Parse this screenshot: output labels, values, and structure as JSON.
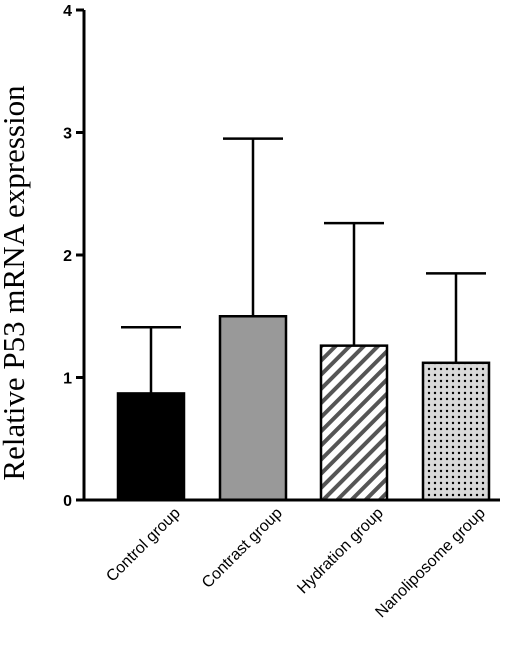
{
  "chart_data": {
    "type": "bar",
    "title": "",
    "xlabel": "",
    "ylabel": "Relative P53 mRNA expression",
    "ylim": [
      0,
      4
    ],
    "yticks": [
      0,
      1,
      2,
      3,
      4
    ],
    "categories": [
      "Control group",
      "Contrast group",
      "Hydration group",
      "Nanoliposome group"
    ],
    "values": [
      0.87,
      1.5,
      1.26,
      1.12
    ],
    "error_upper": [
      1.41,
      2.95,
      2.26,
      1.85
    ],
    "bar_fills": [
      "solid",
      "solid",
      "diagonal-stripes",
      "dots"
    ],
    "colors": [
      "#000000",
      "#999999",
      "#ffffff",
      "#d9d9d9"
    ],
    "grid": false,
    "legend": "none"
  }
}
